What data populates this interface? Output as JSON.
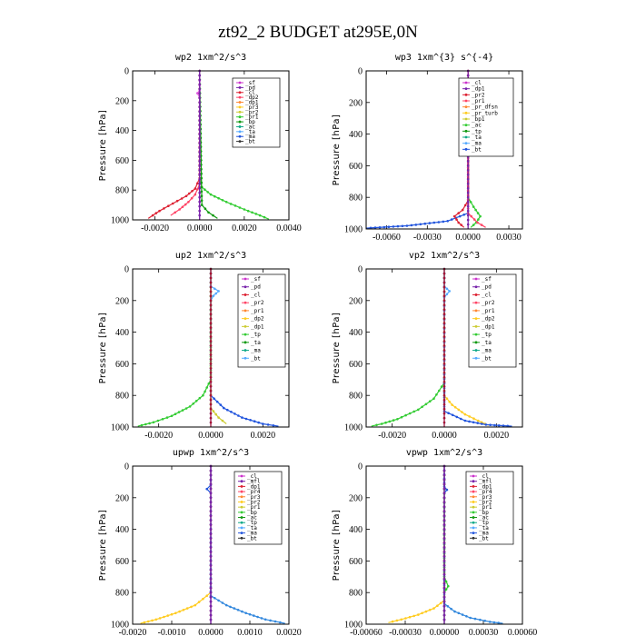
{
  "title": "zt92_2  BUDGET at295E,0N",
  "chart_data": [
    {
      "type": "line",
      "title": "wp2   1xm^2/s^3",
      "ylabel": "Pressure  [hPa]",
      "ylim": [
        1000,
        0
      ],
      "yticks": [
        0,
        200,
        400,
        600,
        800,
        1000
      ],
      "xlim": [
        -0.003,
        0.004
      ],
      "xticks": [
        -0.002,
        0.0,
        0.002,
        0.004
      ],
      "xtick_labels": [
        "-0.0020",
        "0.0000",
        "0.0020",
        "0.0040"
      ],
      "legend": [
        "_sf",
        "_pd",
        "_cl",
        "_dp2",
        "_dp1",
        "_pr3",
        "_pr2",
        "_pr1",
        "_bp",
        "_ac",
        "_ta",
        "_ma",
        "_bt"
      ],
      "series": [
        {
          "name": "_pr1",
          "color": "#33cc33",
          "points": [
            [
              0.0,
              0
            ],
            [
              0.0,
              700
            ],
            [
              0.0001,
              780
            ],
            [
              0.0005,
              830
            ],
            [
              0.0012,
              880
            ],
            [
              0.002,
              930
            ],
            [
              0.0027,
              970
            ],
            [
              0.0031,
              995
            ]
          ]
        },
        {
          "name": "_dp1",
          "color": "#dd2233",
          "points": [
            [
              0.0,
              0
            ],
            [
              0.0,
              720
            ],
            [
              -0.0002,
              790
            ],
            [
              -0.0006,
              840
            ],
            [
              -0.0012,
              890
            ],
            [
              -0.0018,
              940
            ],
            [
              -0.0021,
              970
            ],
            [
              -0.0023,
              990
            ]
          ]
        },
        {
          "name": "_cl",
          "color": "#ff4466",
          "points": [
            [
              0.0,
              0
            ],
            [
              0.0,
              760
            ],
            [
              -0.0002,
              830
            ],
            [
              -0.0005,
              880
            ],
            [
              -0.0009,
              930
            ],
            [
              -0.0013,
              970
            ]
          ]
        },
        {
          "name": "_bp",
          "color": "#119911",
          "points": [
            [
              0.0,
              0
            ],
            [
              0.0001,
              900
            ],
            [
              0.0004,
              950
            ],
            [
              0.0008,
              990
            ]
          ]
        },
        {
          "name": "_sf",
          "color": "#dd55dd",
          "points": [
            [
              0.0,
              0
            ],
            [
              0.0,
              130
            ],
            [
              -0.0001,
              150
            ],
            [
              0.0,
              180
            ],
            [
              0.0,
              1000
            ]
          ]
        },
        {
          "name": "_pd",
          "color": "#7722aa",
          "points": [
            [
              0.0,
              0
            ],
            [
              0.0,
              1000
            ]
          ]
        }
      ]
    },
    {
      "type": "line",
      "title": "wp3   1xm^{3} s^{-4}",
      "ylabel": "Pressure  [hPa]",
      "ylim": [
        1000,
        0
      ],
      "yticks": [
        0,
        200,
        400,
        600,
        800,
        1000
      ],
      "xlim": [
        -0.0075,
        0.004
      ],
      "xticks": [
        -0.006,
        -0.003,
        0.0,
        0.003
      ],
      "xtick_labels": [
        "-0.0060",
        "-0.0030",
        "0.0000",
        "0.0030"
      ],
      "legend": [
        "_cl",
        "_dp1",
        "_pr2",
        "_pr1",
        "_pr_dfsn",
        "_pr_turb",
        "_bp1",
        "_ac",
        "_tp",
        "_ta",
        "_ma",
        "_bt"
      ],
      "series": [
        {
          "name": "_ta",
          "color": "#2255dd",
          "points": [
            [
              0.0,
              0
            ],
            [
              0.0,
              900
            ],
            [
              -0.0015,
              950
            ],
            [
              -0.0045,
              980
            ],
            [
              -0.0075,
              995
            ]
          ]
        },
        {
          "name": "_pr1",
          "color": "#33cc33",
          "points": [
            [
              0.0,
              0
            ],
            [
              0.0,
              800
            ],
            [
              0.0004,
              860
            ],
            [
              0.0009,
              920
            ],
            [
              0.0006,
              960
            ],
            [
              0.0002,
              990
            ]
          ]
        },
        {
          "name": "_dp1",
          "color": "#dd2233",
          "points": [
            [
              0.0,
              0
            ],
            [
              0.0,
              820
            ],
            [
              -0.0004,
              880
            ],
            [
              -0.001,
              920
            ],
            [
              -0.0007,
              960
            ],
            [
              -0.0003,
              990
            ]
          ]
        },
        {
          "name": "_cl",
          "color": "#ff4466",
          "points": [
            [
              0.0,
              0
            ],
            [
              0.0,
              900
            ],
            [
              0.0007,
              960
            ],
            [
              0.0013,
              990
            ]
          ]
        },
        {
          "name": "_pd",
          "color": "#7722aa",
          "points": [
            [
              0.0,
              0
            ],
            [
              0.0,
              1000
            ]
          ]
        }
      ]
    },
    {
      "type": "line",
      "title": "up2   1xm^2/s^3",
      "ylabel": "Pressure  [hPa]",
      "ylim": [
        1000,
        0
      ],
      "yticks": [
        0,
        200,
        400,
        600,
        800,
        1000
      ],
      "xlim": [
        -0.003,
        0.003
      ],
      "xticks": [
        -0.002,
        0.0,
        0.002
      ],
      "xtick_labels": [
        "-0.0020",
        "0.0000",
        "0.0020"
      ],
      "legend": [
        "_sf",
        "_pd",
        "_cl",
        "_pr2",
        "_pr1",
        "_dp2",
        "_dp1",
        "_tp",
        "_ta",
        "_ma",
        "_bt"
      ],
      "series": [
        {
          "name": "_dp1",
          "color": "#33cc33",
          "points": [
            [
              0.0,
              0
            ],
            [
              0.0,
              700
            ],
            [
              -0.0003,
              800
            ],
            [
              -0.0008,
              870
            ],
            [
              -0.0015,
              930
            ],
            [
              -0.0022,
              970
            ],
            [
              -0.0028,
              995
            ]
          ]
        },
        {
          "name": "_ta",
          "color": "#2255dd",
          "points": [
            [
              0.0,
              0
            ],
            [
              0.0,
              800
            ],
            [
              0.0005,
              880
            ],
            [
              0.0012,
              940
            ],
            [
              0.002,
              980
            ],
            [
              0.0026,
              995
            ]
          ]
        },
        {
          "name": "_pr1",
          "color": "#cccc33",
          "points": [
            [
              0.0,
              0
            ],
            [
              0.0,
              880
            ],
            [
              0.0003,
              940
            ],
            [
              0.0006,
              980
            ]
          ]
        },
        {
          "name": "_tp",
          "color": "#55aaff",
          "points": [
            [
              0.0,
              0
            ],
            [
              0.0,
              110
            ],
            [
              0.0003,
              140
            ],
            [
              0.0001,
              170
            ],
            [
              0.0,
              200
            ],
            [
              0.0,
              1000
            ]
          ]
        },
        {
          "name": "_sf",
          "color": "#aa1133",
          "points": [
            [
              0.0,
              0
            ],
            [
              0.0,
              1000
            ]
          ]
        }
      ]
    },
    {
      "type": "line",
      "title": "vp2   1xm^2/s^3",
      "ylabel": "Pressure  [hPa]",
      "ylim": [
        1000,
        0
      ],
      "yticks": [
        0,
        200,
        400,
        600,
        800,
        1000
      ],
      "xlim": [
        -0.003,
        0.003
      ],
      "xticks": [
        -0.002,
        0.0,
        0.002
      ],
      "xtick_labels": [
        "-0.0020",
        "0.0000",
        "0.0020"
      ],
      "legend": [
        "_sf",
        "_pd",
        "_cl",
        "_pr2",
        "_pr1",
        "_dp2",
        "_dp1",
        "_tp",
        "_ta",
        "_ma",
        "_bt"
      ],
      "series": [
        {
          "name": "_dp1",
          "color": "#33cc33",
          "points": [
            [
              0.0,
              0
            ],
            [
              0.0,
              720
            ],
            [
              -0.0004,
              820
            ],
            [
              -0.001,
              890
            ],
            [
              -0.0018,
              950
            ],
            [
              -0.0024,
              980
            ],
            [
              -0.0028,
              995
            ]
          ]
        },
        {
          "name": "_pr1",
          "color": "#ffcc22",
          "points": [
            [
              0.0,
              0
            ],
            [
              0.0,
              800
            ],
            [
              0.0003,
              860
            ],
            [
              0.0008,
              920
            ],
            [
              0.0013,
              960
            ],
            [
              0.0017,
              990
            ]
          ]
        },
        {
          "name": "_ta",
          "color": "#2255dd",
          "points": [
            [
              0.0,
              0
            ],
            [
              0.0,
              900
            ],
            [
              0.0008,
              960
            ],
            [
              0.0016,
              985
            ],
            [
              0.0026,
              995
            ]
          ]
        },
        {
          "name": "_tp",
          "color": "#55aaff",
          "points": [
            [
              0.0,
              0
            ],
            [
              0.0,
              110
            ],
            [
              0.0002,
              140
            ],
            [
              0.0,
              180
            ],
            [
              0.0,
              1000
            ]
          ]
        },
        {
          "name": "_sf",
          "color": "#aa1133",
          "points": [
            [
              0.0,
              0
            ],
            [
              0.0,
              1000
            ]
          ]
        }
      ]
    },
    {
      "type": "line",
      "title": "upwp   1xm^2/s^3",
      "ylabel": "Pressure  [hPa]",
      "ylim": [
        1000,
        0
      ],
      "yticks": [
        0,
        200,
        400,
        600,
        800,
        1000
      ],
      "xlim": [
        -0.002,
        0.002
      ],
      "xticks": [
        -0.002,
        -0.001,
        0.0,
        0.001,
        0.002
      ],
      "xtick_labels": [
        "-0.0020",
        "-0.0010",
        "0.0000",
        "0.0010",
        "0.0020"
      ],
      "legend": [
        "_cl",
        "_mfl",
        "_dp1",
        "_pr4",
        "_pr3",
        "_pr2",
        "_pr1",
        "_bp",
        "_ac",
        "_tp",
        "_ta",
        "_ma",
        "_bt"
      ],
      "series": [
        {
          "name": "_pr1",
          "color": "#ffcc22",
          "points": [
            [
              0.0,
              0
            ],
            [
              0.0,
              800
            ],
            [
              -0.0004,
              880
            ],
            [
              -0.0009,
              930
            ],
            [
              -0.0014,
              970
            ],
            [
              -0.0018,
              995
            ]
          ]
        },
        {
          "name": "_ta",
          "color": "#3388dd",
          "points": [
            [
              0.0,
              0
            ],
            [
              0.0,
              820
            ],
            [
              0.0004,
              880
            ],
            [
              0.0009,
              930
            ],
            [
              0.0014,
              970
            ],
            [
              0.0019,
              995
            ]
          ]
        },
        {
          "name": "_tp",
          "color": "#2255dd",
          "points": [
            [
              0.0,
              0
            ],
            [
              0.0,
              120
            ],
            [
              -0.0001,
              145
            ],
            [
              0.0,
              170
            ],
            [
              0.0,
              1000
            ]
          ]
        },
        {
          "name": "_dp1",
          "color": "#dd2233",
          "points": [
            [
              0.0,
              0
            ],
            [
              0.0,
              1000
            ]
          ]
        },
        {
          "name": "_cl",
          "color": "#7722aa",
          "points": [
            [
              0.0,
              0
            ],
            [
              0.0,
              1000
            ]
          ]
        }
      ]
    },
    {
      "type": "line",
      "title": "vpwp   1xm^2/s^3",
      "ylabel": "Pressure  [hPa]",
      "ylim": [
        1000,
        0
      ],
      "yticks": [
        0,
        200,
        400,
        600,
        800,
        1000
      ],
      "xlim": [
        -0.0006,
        0.0006
      ],
      "xticks": [
        -0.0006,
        -0.0003,
        0.0,
        0.0003,
        0.0006
      ],
      "xtick_labels": [
        "-0.00060",
        "-0.00030",
        "0.00000",
        "0.00030",
        "0.00060"
      ],
      "legend": [
        "_cl",
        "_mfl",
        "_dp1",
        "_pr4",
        "_pr3",
        "_pr2",
        "_pr1",
        "_bp",
        "_ac",
        "_tp",
        "_ta",
        "_ma",
        "_bt"
      ],
      "series": [
        {
          "name": "_pr1",
          "color": "#ffcc22",
          "points": [
            [
              0.0,
              0
            ],
            [
              0.0,
              850
            ],
            [
              -8e-05,
              900
            ],
            [
              -0.0002,
              940
            ],
            [
              -0.00033,
              970
            ],
            [
              -0.00043,
              990
            ]
          ]
        },
        {
          "name": "_ta",
          "color": "#3388dd",
          "points": [
            [
              0.0,
              0
            ],
            [
              0.0,
              870
            ],
            [
              8e-05,
              920
            ],
            [
              0.0002,
              960
            ],
            [
              0.00035,
              985
            ],
            [
              0.00045,
              995
            ]
          ]
        },
        {
          "name": "_bp",
          "color": "#33cc33",
          "points": [
            [
              0.0,
              0
            ],
            [
              0.0,
              700
            ],
            [
              3e-05,
              760
            ],
            [
              0.0,
              800
            ],
            [
              0.0,
              1000
            ]
          ]
        },
        {
          "name": "_tp",
          "color": "#2255dd",
          "points": [
            [
              0.0,
              0
            ],
            [
              0.0,
              130
            ],
            [
              2e-05,
              150
            ],
            [
              0.0,
              170
            ],
            [
              0.0,
              1000
            ]
          ]
        },
        {
          "name": "_dp1",
          "color": "#dd2233",
          "points": [
            [
              0.0,
              0
            ],
            [
              0.0,
              1000
            ]
          ]
        },
        {
          "name": "_cl",
          "color": "#7722aa",
          "points": [
            [
              0.0,
              0
            ],
            [
              0.0,
              1000
            ]
          ]
        }
      ]
    }
  ]
}
